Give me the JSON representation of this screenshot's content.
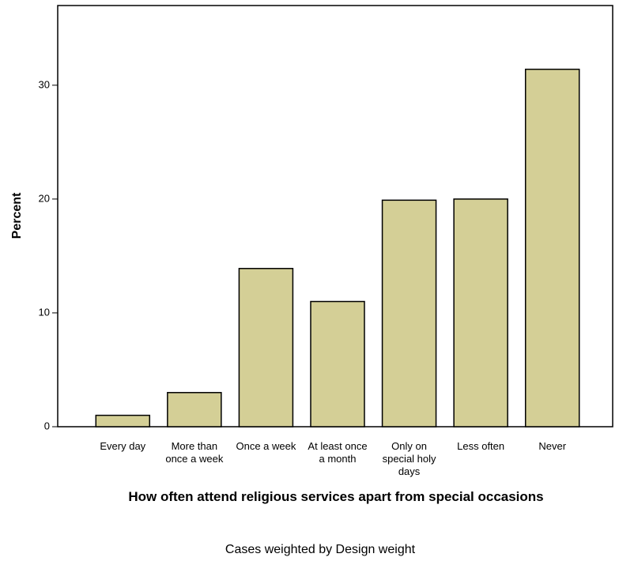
{
  "chart_data": {
    "type": "bar",
    "categories": [
      "Every day",
      "More than once a week",
      "Once a week",
      "At least once a month",
      "Only on special holy days",
      "Less often",
      "Never"
    ],
    "values": [
      1.0,
      3.0,
      13.9,
      11.0,
      19.9,
      20.0,
      31.4
    ],
    "color": "#d4cf96",
    "x_label": "How often attend religious services apart from special occasions",
    "y_label": "Percent",
    "footnote": "Cases weighted by Design weight",
    "ylim": [
      0,
      37
    ],
    "yticks": [
      0,
      10,
      20,
      30
    ],
    "grid": false
  }
}
